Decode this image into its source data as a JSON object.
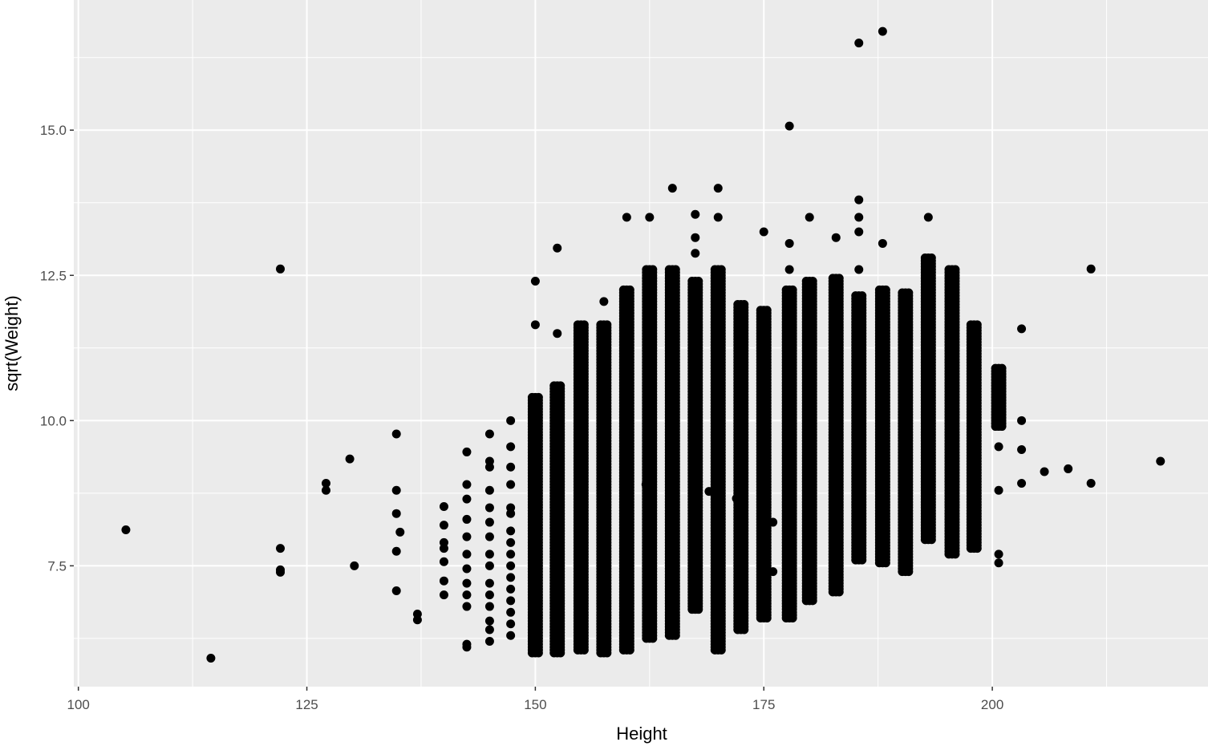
{
  "chart_data": {
    "type": "scatter",
    "title": "",
    "xlabel": "Height",
    "ylabel": "sqrt(Weight)",
    "xlim": [
      99.5,
      223.6
    ],
    "ylim": [
      5.42,
      17.24
    ],
    "x_ticks": [
      100,
      125,
      150,
      175,
      200
    ],
    "x_tick_labels": [
      "100",
      "125",
      "150",
      "175",
      "200"
    ],
    "y_ticks": [
      7.5,
      10.0,
      12.5,
      15.0
    ],
    "y_tick_labels": [
      "7.5",
      "10.0",
      "12.5",
      "15.0"
    ],
    "grid": true,
    "legend": "none",
    "colors": {
      "panel": "#EBEBEB",
      "grid": "#FFFFFF",
      "point": "#000000",
      "tick_text": "#4D4D4D"
    },
    "points": [
      [
        105.2,
        8.12
      ],
      [
        114.5,
        5.91
      ],
      [
        122.1,
        12.61
      ],
      [
        122.1,
        7.8
      ],
      [
        122.1,
        7.43
      ],
      [
        122.1,
        7.39
      ],
      [
        127.1,
        8.92
      ],
      [
        127.1,
        8.8
      ],
      [
        129.7,
        9.34
      ],
      [
        130.2,
        7.5
      ],
      [
        134.8,
        9.77
      ],
      [
        134.8,
        8.8
      ],
      [
        134.8,
        8.4
      ],
      [
        134.8,
        7.75
      ],
      [
        134.8,
        7.07
      ],
      [
        135.2,
        8.08
      ],
      [
        137.1,
        6.67
      ],
      [
        137.1,
        6.57
      ],
      [
        140,
        8.52
      ],
      [
        140,
        8.2
      ],
      [
        140,
        7.9
      ],
      [
        140,
        7.8
      ],
      [
        140,
        7.57
      ],
      [
        140,
        7.24
      ],
      [
        140,
        7.0
      ],
      [
        142.5,
        9.46
      ],
      [
        142.5,
        8.9
      ],
      [
        142.5,
        8.65
      ],
      [
        142.5,
        8.3
      ],
      [
        142.5,
        8.0
      ],
      [
        142.5,
        7.7
      ],
      [
        142.5,
        7.45
      ],
      [
        142.5,
        7.2
      ],
      [
        142.5,
        7.0
      ],
      [
        142.5,
        6.8
      ],
      [
        142.5,
        6.15
      ],
      [
        142.5,
        6.1
      ],
      [
        145,
        9.77
      ],
      [
        145,
        9.3
      ],
      [
        145,
        9.2
      ],
      [
        145,
        8.8
      ],
      [
        145,
        8.5
      ],
      [
        145,
        8.25
      ],
      [
        145,
        8.0
      ],
      [
        145,
        7.7
      ],
      [
        145,
        7.5
      ],
      [
        145,
        7.2
      ],
      [
        145,
        7.0
      ],
      [
        145,
        6.8
      ],
      [
        145,
        6.55
      ],
      [
        145,
        6.4
      ],
      [
        145,
        6.2
      ],
      [
        147.3,
        10.0
      ],
      [
        147.3,
        9.55
      ],
      [
        147.3,
        9.2
      ],
      [
        147.3,
        8.9
      ],
      [
        147.3,
        8.5
      ],
      [
        147.3,
        8.4
      ],
      [
        147.3,
        8.1
      ],
      [
        147.3,
        7.9
      ],
      [
        147.3,
        7.7
      ],
      [
        147.3,
        7.5
      ],
      [
        147.3,
        7.3
      ],
      [
        147.3,
        7.1
      ],
      [
        147.3,
        6.9
      ],
      [
        147.3,
        6.7
      ],
      [
        147.3,
        6.5
      ],
      [
        147.3,
        6.3
      ],
      [
        150,
        12.4
      ],
      [
        150,
        11.65
      ],
      [
        152.4,
        12.97
      ],
      [
        152.4,
        11.5
      ],
      [
        154.9,
        8.25
      ],
      [
        157.5,
        12.05
      ],
      [
        160,
        13.5
      ],
      [
        162.5,
        13.5
      ],
      [
        162.1,
        8.9
      ],
      [
        165,
        14.0
      ],
      [
        167.5,
        13.55
      ],
      [
        167.5,
        13.15
      ],
      [
        167.5,
        12.88
      ],
      [
        169,
        8.78
      ],
      [
        170,
        14.0
      ],
      [
        170,
        13.5
      ],
      [
        172,
        8.66
      ],
      [
        175,
        13.25
      ],
      [
        176,
        8.25
      ],
      [
        176,
        7.4
      ],
      [
        177.8,
        15.07
      ],
      [
        177.8,
        13.05
      ],
      [
        177.8,
        12.6
      ],
      [
        180,
        13.5
      ],
      [
        182.9,
        13.15
      ],
      [
        185.4,
        16.5
      ],
      [
        185.4,
        13.8
      ],
      [
        185.4,
        13.5
      ],
      [
        185.4,
        13.25
      ],
      [
        185.4,
        12.6
      ],
      [
        188,
        16.7
      ],
      [
        188,
        13.05
      ],
      [
        193,
        13.5
      ],
      [
        200.7,
        9.55
      ],
      [
        200.7,
        8.8
      ],
      [
        200.7,
        7.7
      ],
      [
        200.7,
        7.55
      ],
      [
        203.2,
        8.92
      ],
      [
        203.2,
        9.5
      ],
      [
        203.2,
        10.0
      ],
      [
        203.2,
        11.58
      ],
      [
        205.7,
        9.12
      ],
      [
        208.3,
        9.17
      ],
      [
        210.8,
        8.92
      ],
      [
        210.8,
        12.61
      ],
      [
        218.4,
        9.3
      ]
    ],
    "dense_columns": [
      {
        "x": 150,
        "y_min": 6.0,
        "y_max": 10.4
      },
      {
        "x": 152.4,
        "y_min": 6.0,
        "y_max": 10.6
      },
      {
        "x": 155,
        "y_min": 6.05,
        "y_max": 11.65
      },
      {
        "x": 157.5,
        "y_min": 6.0,
        "y_max": 11.65
      },
      {
        "x": 160,
        "y_min": 6.05,
        "y_max": 12.25
      },
      {
        "x": 162.5,
        "y_min": 6.25,
        "y_max": 12.6
      },
      {
        "x": 165,
        "y_min": 6.3,
        "y_max": 12.6
      },
      {
        "x": 167.5,
        "y_min": 6.75,
        "y_max": 12.4
      },
      {
        "x": 170,
        "y_min": 6.05,
        "y_max": 12.6
      },
      {
        "x": 172.5,
        "y_min": 6.4,
        "y_max": 12.0
      },
      {
        "x": 175,
        "y_min": 6.6,
        "y_max": 11.9
      },
      {
        "x": 177.8,
        "y_min": 6.6,
        "y_max": 12.25
      },
      {
        "x": 180,
        "y_min": 6.9,
        "y_max": 12.4
      },
      {
        "x": 182.9,
        "y_min": 7.05,
        "y_max": 12.45
      },
      {
        "x": 185.4,
        "y_min": 7.6,
        "y_max": 12.15
      },
      {
        "x": 188,
        "y_min": 7.55,
        "y_max": 12.25
      },
      {
        "x": 190.5,
        "y_min": 7.4,
        "y_max": 12.2
      },
      {
        "x": 193,
        "y_min": 7.95,
        "y_max": 12.8
      },
      {
        "x": 195.6,
        "y_min": 7.7,
        "y_max": 12.6
      },
      {
        "x": 198,
        "y_min": 7.8,
        "y_max": 11.65
      },
      {
        "x": 200.7,
        "y_min": 9.9,
        "y_max": 10.9
      }
    ]
  }
}
